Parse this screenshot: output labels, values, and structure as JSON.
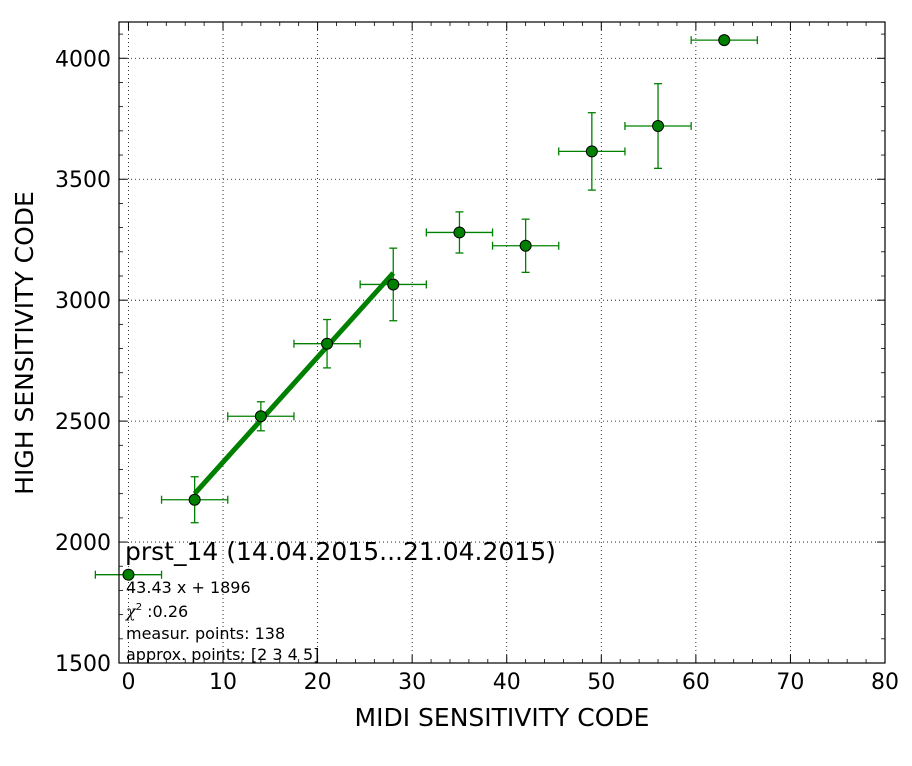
{
  "chart_data": {
    "type": "scatter",
    "xlabel": "MIDI SENSITIVITY CODE",
    "ylabel": "HIGH SENSITIVITY CODE",
    "xlim": [
      -1,
      80
    ],
    "ylim": [
      1500,
      4150
    ],
    "xticks": [
      0,
      10,
      20,
      30,
      40,
      50,
      60,
      70,
      80
    ],
    "yticks": [
      1500,
      2000,
      2500,
      3000,
      3500,
      4000
    ],
    "grid": true,
    "colors": {
      "marker": "#008000",
      "errorbar": "#008000",
      "fit": "#008000"
    },
    "points": [
      {
        "x": 0,
        "y": 1865,
        "xerr": 3.5,
        "yerr": 0
      },
      {
        "x": 7,
        "y": 2175,
        "xerr": 3.5,
        "yerr": 95
      },
      {
        "x": 14,
        "y": 2520,
        "xerr": 3.5,
        "yerr": 60
      },
      {
        "x": 21,
        "y": 2820,
        "xerr": 3.5,
        "yerr": 100
      },
      {
        "x": 28,
        "y": 3065,
        "xerr": 3.5,
        "yerr": 150
      },
      {
        "x": 35,
        "y": 3280,
        "xerr": 3.5,
        "yerr": 85
      },
      {
        "x": 42,
        "y": 3225,
        "xerr": 3.5,
        "yerr": 110
      },
      {
        "x": 49,
        "y": 3615,
        "xerr": 3.5,
        "yerr": 160
      },
      {
        "x": 56,
        "y": 3720,
        "xerr": 3.5,
        "yerr": 175
      },
      {
        "x": 63,
        "y": 4075,
        "xerr": 3.5,
        "yerr": 0
      }
    ],
    "fit": {
      "slope": 43.43,
      "intercept": 1896,
      "x_range": [
        7,
        28
      ]
    },
    "annotation": {
      "title": "prst_14 (14.04.2015...21.04.2015)",
      "equation": "43.43 x + 1896",
      "chi2_label": "χ",
      "chi2_sup": "2",
      "chi2_value": " :0.26",
      "measur_points": "measur. points: 138",
      "approx_points": "approx. points: [2 3 4 5]"
    }
  }
}
